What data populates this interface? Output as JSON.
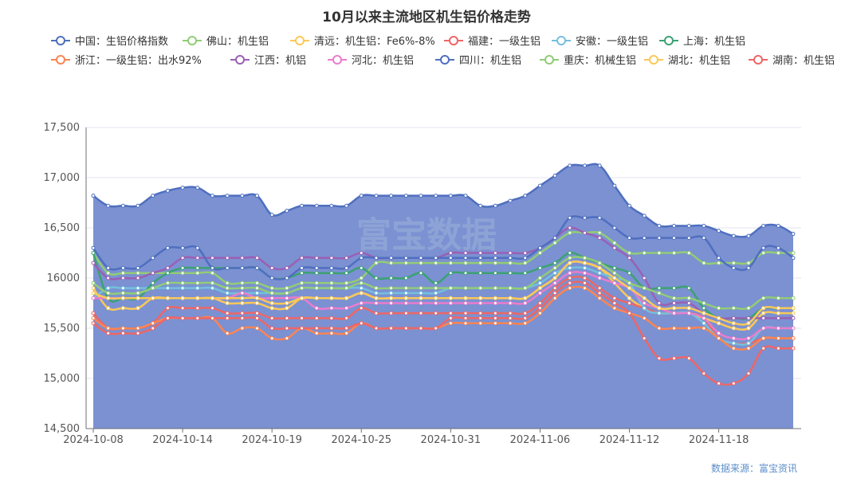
{
  "chart_data": {
    "type": "line",
    "title": "10月以来主流地区机生铝价格走势",
    "source": "数据来源：富宝资讯",
    "watermark": "富宝数据",
    "ylim": [
      14500,
      17500
    ],
    "yticks": [
      "14,500",
      "15,000",
      "15,500",
      "16000",
      "16,500",
      "17,000",
      "17,500"
    ],
    "ytick_values": [
      14500,
      15000,
      15500,
      16000,
      16500,
      17000,
      17500
    ],
    "xtick_labels": [
      "2024-10-08",
      "2024-10-14",
      "2024-10-19",
      "2024-10-25",
      "2024-10-31",
      "2024-11-06",
      "2024-11-12",
      "2024-11-18"
    ],
    "xtick_index": [
      0,
      6,
      12,
      18,
      24,
      30,
      36,
      42
    ],
    "n_points": 48,
    "grid": "horizontal",
    "legend_position": "top",
    "series": [
      {
        "name": "中国：生铝价格指数",
        "color": "#4f6fbf",
        "fill": "#7b91d2",
        "values": [
          16820,
          16720,
          16720,
          16720,
          16820,
          16870,
          16900,
          16900,
          16820,
          16820,
          16820,
          16820,
          16630,
          16670,
          16720,
          16720,
          16720,
          16720,
          16820,
          16820,
          16820,
          16820,
          16820,
          16820,
          16820,
          16820,
          16720,
          16720,
          16770,
          16820,
          16920,
          17020,
          17120,
          17120,
          17120,
          16920,
          16720,
          16620,
          16520,
          16520,
          16520,
          16520,
          16470,
          16420,
          16420,
          16520,
          16520,
          16440
        ]
      },
      {
        "name": "佛山：机生铝",
        "color": "#91cc75",
        "values": [
          16250,
          16050,
          16050,
          16050,
          16050,
          16050,
          16050,
          16050,
          16050,
          15950,
          15950,
          15950,
          15900,
          15900,
          15950,
          15950,
          15950,
          15950,
          16000,
          16150,
          16150,
          16150,
          16150,
          16150,
          16150,
          16150,
          16150,
          16150,
          16150,
          16150,
          16250,
          16350,
          16450,
          16450,
          16450,
          16350,
          16250,
          16250,
          16250,
          16250,
          16250,
          16150,
          16150,
          16150,
          16150,
          16250,
          16250,
          16250
        ]
      },
      {
        "name": "清远：机生铝：Fe6%-8%",
        "color": "#fac858",
        "values": [
          15900,
          15700,
          15700,
          15700,
          15800,
          15800,
          15800,
          15800,
          15800,
          15750,
          15750,
          15750,
          15700,
          15700,
          15800,
          15800,
          15800,
          15800,
          15850,
          15800,
          15800,
          15800,
          15800,
          15800,
          15800,
          15800,
          15800,
          15800,
          15800,
          15800,
          15900,
          16000,
          16150,
          16150,
          16100,
          15950,
          15800,
          15700,
          15650,
          15650,
          15650,
          15600,
          15550,
          15500,
          15500,
          15650,
          15650,
          15650
        ]
      },
      {
        "name": "福建：一级生铝",
        "color": "#ee6666",
        "values": [
          15650,
          15500,
          15500,
          15500,
          15550,
          15700,
          15700,
          15700,
          15700,
          15650,
          15650,
          15650,
          15600,
          15600,
          15600,
          15600,
          15600,
          15600,
          15700,
          15650,
          15650,
          15650,
          15650,
          15650,
          15650,
          15650,
          15650,
          15650,
          15650,
          15650,
          15750,
          15900,
          16000,
          16000,
          15900,
          15800,
          15750,
          15700,
          15650,
          15650,
          15650,
          15600,
          15400,
          15350,
          15350,
          15400,
          15400,
          15400
        ]
      },
      {
        "name": "安徽：一级生铝",
        "color": "#73c0de",
        "values": [
          15800,
          15900,
          15900,
          15900,
          15900,
          15900,
          15900,
          15900,
          15900,
          15850,
          15850,
          15850,
          15850,
          15850,
          15900,
          15900,
          15900,
          15900,
          15900,
          15850,
          15850,
          15850,
          15850,
          15850,
          15900,
          15900,
          15900,
          15900,
          15900,
          15900,
          15950,
          16050,
          16100,
          16100,
          16050,
          16000,
          15950,
          15700,
          15650,
          15650,
          15650,
          15550,
          15400,
          15350,
          15350,
          15500,
          15500,
          15500
        ]
      },
      {
        "name": "上海：机生铝",
        "color": "#3ba272",
        "values": [
          16250,
          15800,
          15800,
          15800,
          15950,
          16050,
          16100,
          16100,
          16100,
          16100,
          16100,
          16100,
          16000,
          16000,
          16050,
          16050,
          16050,
          16050,
          16100,
          16000,
          16000,
          16000,
          16050,
          15950,
          16050,
          16050,
          16050,
          16050,
          16050,
          16050,
          16100,
          16150,
          16250,
          16200,
          16150,
          16100,
          16050,
          15900,
          15900,
          15900,
          15900,
          15700,
          15600,
          15600,
          15600,
          15700,
          15700,
          15700
        ]
      },
      {
        "name": "浙江：一级生铝：出水92%",
        "color": "#fc8452",
        "values": [
          15600,
          15500,
          15500,
          15500,
          15550,
          15600,
          15600,
          15600,
          15600,
          15450,
          15500,
          15500,
          15400,
          15400,
          15500,
          15450,
          15450,
          15450,
          15550,
          15500,
          15500,
          15500,
          15500,
          15500,
          15550,
          15550,
          15550,
          15550,
          15550,
          15550,
          15650,
          15800,
          15900,
          15900,
          15800,
          15700,
          15650,
          15600,
          15500,
          15500,
          15500,
          15500,
          15400,
          15300,
          15300,
          15400,
          15400,
          15400
        ]
      },
      {
        "name": "江西：机铝",
        "color": "#9a60b4",
        "values": [
          16150,
          16000,
          16000,
          16000,
          16050,
          16100,
          16200,
          16200,
          16200,
          16200,
          16200,
          16200,
          16100,
          16100,
          16200,
          16200,
          16200,
          16200,
          16250,
          16200,
          16200,
          16200,
          16200,
          16200,
          16250,
          16250,
          16250,
          16250,
          16250,
          16250,
          16300,
          16400,
          16500,
          16450,
          16400,
          16300,
          16200,
          16000,
          15750,
          15750,
          15750,
          15650,
          15600,
          15600,
          15600,
          15600,
          15600,
          15600
        ]
      },
      {
        "name": "河北：机生铝",
        "color": "#ea7ccc",
        "values": [
          15800,
          15800,
          15800,
          15800,
          15800,
          15800,
          15800,
          15800,
          15800,
          15800,
          15850,
          15800,
          15800,
          15800,
          15800,
          15700,
          15700,
          15700,
          15750,
          15750,
          15750,
          15750,
          15750,
          15750,
          15750,
          15750,
          15750,
          15750,
          15750,
          15750,
          15850,
          15950,
          16050,
          16050,
          16000,
          15950,
          15900,
          15750,
          15700,
          15650,
          15650,
          15600,
          15450,
          15400,
          15400,
          15500,
          15500,
          15500
        ]
      },
      {
        "name": "四川：机生铝",
        "color": "#4f6fbf",
        "values": [
          16300,
          16100,
          16100,
          16100,
          16200,
          16300,
          16300,
          16300,
          16100,
          16100,
          16100,
          16100,
          16000,
          16000,
          16100,
          16100,
          16100,
          16100,
          16200,
          16200,
          16200,
          16200,
          16200,
          16200,
          16200,
          16200,
          16200,
          16200,
          16200,
          16200,
          16300,
          16400,
          16600,
          16600,
          16600,
          16500,
          16400,
          16400,
          16400,
          16400,
          16400,
          16400,
          16200,
          16100,
          16100,
          16300,
          16300,
          16200
        ]
      },
      {
        "name": "重庆：机械生铝",
        "color": "#91cc75",
        "values": [
          15950,
          15850,
          15850,
          15850,
          15900,
          15950,
          15950,
          15950,
          15950,
          15900,
          15900,
          15900,
          15850,
          15850,
          15900,
          15900,
          15900,
          15900,
          15950,
          15900,
          15900,
          15900,
          15900,
          15900,
          15900,
          15900,
          15900,
          15900,
          15900,
          15900,
          16000,
          16100,
          16200,
          16200,
          16150,
          16050,
          15950,
          15900,
          15850,
          15800,
          15800,
          15750,
          15700,
          15700,
          15700,
          15800,
          15800,
          15800
        ]
      },
      {
        "name": "湖北：机生铝",
        "color": "#fac858",
        "values": [
          15850,
          15800,
          15800,
          15800,
          15800,
          15800,
          15800,
          15800,
          15800,
          15800,
          15800,
          15800,
          15750,
          15750,
          15800,
          15800,
          15800,
          15800,
          15850,
          15800,
          15800,
          15800,
          15800,
          15800,
          15800,
          15800,
          15800,
          15800,
          15800,
          15800,
          15900,
          16000,
          16150,
          16150,
          16100,
          16000,
          15900,
          15800,
          15700,
          15700,
          15700,
          15650,
          15600,
          15550,
          15550,
          15700,
          15700,
          15700
        ]
      },
      {
        "name": "湖南：机生铝",
        "color": "#ee6666",
        "values": [
          15550,
          15450,
          15450,
          15450,
          15500,
          15600,
          15600,
          15600,
          15600,
          15600,
          15600,
          15600,
          15500,
          15500,
          15500,
          15500,
          15500,
          15500,
          15550,
          15500,
          15500,
          15500,
          15500,
          15500,
          15600,
          15600,
          15600,
          15600,
          15600,
          15600,
          15700,
          15850,
          15950,
          15950,
          15850,
          15750,
          15650,
          15400,
          15200,
          15200,
          15200,
          15050,
          14950,
          14950,
          15050,
          15300,
          15300,
          15300
        ]
      }
    ]
  }
}
